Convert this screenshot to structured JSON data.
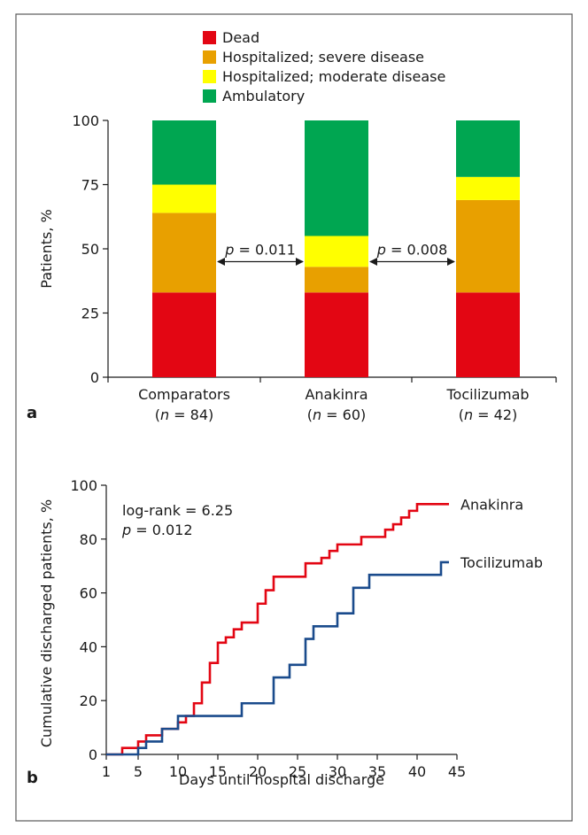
{
  "panel_labels": {
    "a": "a",
    "b": "b"
  },
  "chart_data": [
    {
      "type": "bar",
      "stacked": true,
      "legend_position": "top",
      "ylabel": "Patients, %",
      "ylim": [
        0,
        100
      ],
      "yticks": [
        0,
        25,
        50,
        75,
        100
      ],
      "categories": [
        "Comparators",
        "Anakinra",
        "Tocilizumab"
      ],
      "category_n": [
        "84",
        "60",
        "42"
      ],
      "n_prefix": "(",
      "n_symbol": "n",
      "n_infix": " = ",
      "n_suffix": ")",
      "series": [
        {
          "name": "Dead",
          "color": "#e30613",
          "values": [
            33,
            33,
            33
          ]
        },
        {
          "name": "Hospitalized; severe disease",
          "color": "#e8a000",
          "values": [
            31,
            10,
            36
          ]
        },
        {
          "name": "Hospitalized; moderate disease",
          "color": "#ffff00",
          "values": [
            11,
            12,
            9
          ]
        },
        {
          "name": "Ambulatory",
          "color": "#00a651",
          "values": [
            25,
            45,
            22
          ]
        }
      ],
      "annotations": [
        {
          "from": "Comparators",
          "to": "Anakinra",
          "y": 45,
          "symbol": "p",
          "value": " = 0.011"
        },
        {
          "from": "Anakinra",
          "to": "Tocilizumab",
          "y": 45,
          "symbol": "p",
          "value": " = 0.008"
        }
      ]
    },
    {
      "type": "line",
      "step": true,
      "xlabel": "Days until hospital discharge",
      "ylabel": "Cumulative discharged patients, %",
      "xlim": [
        1,
        45
      ],
      "ylim": [
        0,
        100
      ],
      "xticks": [
        1,
        5,
        10,
        15,
        20,
        25,
        30,
        35,
        40,
        45
      ],
      "yticks": [
        0,
        20,
        40,
        60,
        80,
        100
      ],
      "stat_text": {
        "line1": "log-rank = 6.25",
        "line2_symbol": "p",
        "line2_value": " = 0.012"
      },
      "series": [
        {
          "name": "Anakinra",
          "color": "#e30613",
          "points": [
            [
              1,
              0
            ],
            [
              3,
              2.4
            ],
            [
              5,
              4.8
            ],
            [
              6,
              7.1
            ],
            [
              8,
              9.5
            ],
            [
              10,
              11.9
            ],
            [
              11,
              14.3
            ],
            [
              12,
              19
            ],
            [
              13,
              26.7
            ],
            [
              14,
              34
            ],
            [
              15,
              41.5
            ],
            [
              16,
              43.5
            ],
            [
              17,
              46.5
            ],
            [
              18,
              49
            ],
            [
              20,
              56
            ],
            [
              21,
              61
            ],
            [
              22,
              66
            ],
            [
              26,
              71
            ],
            [
              28,
              73
            ],
            [
              29,
              75.6
            ],
            [
              30,
              78
            ],
            [
              33,
              80.8
            ],
            [
              36,
              83.5
            ],
            [
              37,
              85.5
            ],
            [
              38,
              88
            ],
            [
              39,
              90.5
            ],
            [
              40,
              93
            ],
            [
              44,
              93
            ]
          ]
        },
        {
          "name": "Tocilizumab",
          "color": "#1a4b8c",
          "points": [
            [
              1,
              0
            ],
            [
              5,
              2.4
            ],
            [
              6,
              4.8
            ],
            [
              8,
              9.5
            ],
            [
              10,
              14.3
            ],
            [
              18,
              19
            ],
            [
              22,
              28.6
            ],
            [
              24,
              33.3
            ],
            [
              26,
              42.9
            ],
            [
              27,
              47.6
            ],
            [
              30,
              52.4
            ],
            [
              32,
              61.9
            ],
            [
              34,
              66.7
            ],
            [
              43,
              71.4
            ],
            [
              44,
              71.4
            ]
          ]
        }
      ]
    }
  ]
}
